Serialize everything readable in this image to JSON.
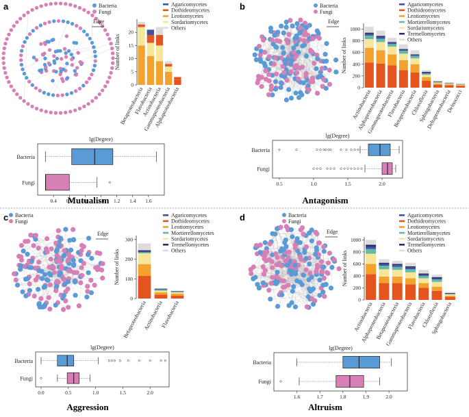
{
  "colors": {
    "bacteria": "#5b9bd5",
    "fungi": "#d680b6",
    "agaricomycetes": "#3b55a0",
    "dothideomycetes": "#e3541f",
    "leotiomycetes": "#f2a22d",
    "mortierellomycetes": "#66b9a6",
    "sordariomycetes": "#f6e69a",
    "tremellomycetes": "#2e2a6b",
    "others": "#dcdcdc",
    "edge": "#bdbdbd"
  },
  "common": {
    "bacteria_label": "Bacteria",
    "fungi_label": "Fungi",
    "edge_label": "Edge",
    "ylabel": "Number of links",
    "degree_label": "lg(Degree)"
  },
  "chart_data": [
    {
      "id": "a",
      "panel_label": "a",
      "title": "Mutualism",
      "type": "bar",
      "stacked": true,
      "ylim": [
        0,
        25
      ],
      "yticks": [
        0,
        5,
        10,
        15,
        20
      ],
      "categories": [
        "Betaproteobacteria",
        "Flavobacteria",
        "Actinobacteria",
        "Gammaproteobacteria",
        "Alphaproteobacteria"
      ],
      "legend": [
        "Agaricomycetes",
        "Dothideomycetes",
        "Leotiomycetes",
        "Sordariomycetes",
        "Others"
      ],
      "series": [
        {
          "name": "Dothideomycetes",
          "key": "dothideomycetes",
          "values": [
            0,
            0,
            0,
            0,
            2
          ]
        },
        {
          "name": "Leotiomycetes",
          "key": "leotiomycetes",
          "values": [
            15,
            11,
            9,
            5,
            0
          ]
        },
        {
          "name": "Sordariomycetes",
          "key": "sordariomycetes",
          "values": [
            7,
            5,
            6,
            2,
            0
          ]
        },
        {
          "name": "Dothideomycetes",
          "key": "dothideomycetes",
          "values": [
            1,
            3,
            4,
            1,
            1
          ]
        },
        {
          "name": "Agaricomycetes",
          "key": "agaricomycetes",
          "values": [
            0,
            2,
            0,
            0,
            0
          ]
        },
        {
          "name": "Others",
          "key": "others",
          "values": [
            1,
            0,
            3,
            1,
            0
          ]
        }
      ],
      "box": {
        "xlim": [
          0.2,
          1.8
        ],
        "xticks": [
          0.4,
          0.6,
          0.8,
          1.0,
          1.2,
          1.4,
          1.6
        ],
        "groups": [
          {
            "name": "Bacteria",
            "key": "bacteria",
            "min": 0.3,
            "q1": 0.63,
            "median": 0.92,
            "q3": 1.15,
            "max": 1.7,
            "outliers": []
          },
          {
            "name": "Fungi",
            "key": "fungi",
            "min": 0.3,
            "q1": 0.3,
            "median": 0.3,
            "q3": 0.6,
            "max": 0.95,
            "outliers": [
              1.11
            ]
          }
        ]
      },
      "network": {
        "bacteria": 75,
        "fungi": 110,
        "edges": 14,
        "layout": "ring"
      }
    },
    {
      "id": "b",
      "panel_label": "b",
      "title": "Antagonism",
      "type": "bar",
      "stacked": true,
      "ylim": [
        0,
        1100
      ],
      "yticks": [
        0,
        200,
        400,
        600,
        800,
        1000
      ],
      "categories": [
        "Actinobacteria",
        "Alphaproteobacteria",
        "Gammaproteobacteria",
        "Flavobacteria",
        "Betaproteobacteria",
        "Chloroflexia",
        "Sphingobacteria",
        "Deltaproteobacteria",
        "Deinococci"
      ],
      "legend": [
        "Agaricomycetes",
        "Dothideomycetes",
        "Leotiomycetes",
        "Mortierellomycetes",
        "Sordariomycetes",
        "Tremellomycetes",
        "Others"
      ],
      "series": [
        {
          "name": "Dothideomycetes",
          "key": "dothideomycetes",
          "values": [
            430,
            410,
            380,
            300,
            260,
            120,
            50,
            40,
            30
          ]
        },
        {
          "name": "Leotiomycetes",
          "key": "leotiomycetes",
          "values": [
            250,
            230,
            190,
            170,
            140,
            60,
            20,
            15,
            12
          ]
        },
        {
          "name": "Sordariomycetes",
          "key": "sordariomycetes",
          "values": [
            150,
            140,
            130,
            110,
            100,
            40,
            15,
            10,
            8
          ]
        },
        {
          "name": "Mortierellomycetes",
          "key": "mortierellomycetes",
          "values": [
            60,
            55,
            45,
            50,
            40,
            20,
            10,
            8,
            6
          ]
        },
        {
          "name": "Agaricomycetes",
          "key": "agaricomycetes",
          "values": [
            30,
            30,
            20,
            20,
            20,
            15,
            5,
            4,
            3
          ]
        },
        {
          "name": "Tremellomycetes",
          "key": "tremellomycetes",
          "values": [
            20,
            20,
            15,
            10,
            10,
            15,
            5,
            3,
            3
          ]
        },
        {
          "name": "Others",
          "key": "others",
          "values": [
            100,
            90,
            70,
            80,
            70,
            30,
            20,
            15,
            8
          ]
        }
      ],
      "box": {
        "xlim": [
          0.4,
          2.3
        ],
        "xticks": [
          0.5,
          1.0,
          1.5,
          2.0
        ],
        "groups": [
          {
            "name": "Bacteria",
            "key": "bacteria",
            "min": 1.68,
            "q1": 1.8,
            "median": 1.97,
            "q3": 2.12,
            "max": 2.25,
            "outliers": [
              0.5,
              0.75,
              1.05,
              1.1,
              1.15,
              1.18,
              1.22,
              1.25,
              1.4,
              1.48,
              1.55,
              1.6,
              1.65
            ]
          },
          {
            "name": "Fungi",
            "key": "fungi",
            "min": 1.75,
            "q1": 2.0,
            "median": 2.08,
            "q3": 2.15,
            "max": 2.2,
            "outliers": [
              1.0,
              1.05,
              1.1,
              1.2,
              1.25,
              1.3,
              1.4,
              1.45,
              1.5,
              1.55,
              1.6,
              1.65,
              1.7
            ]
          }
        ]
      },
      "network": {
        "bacteria": 110,
        "fungi": 90,
        "edges": 320,
        "layout": "dense"
      }
    },
    {
      "id": "c",
      "panel_label": "c",
      "title": "Aggression",
      "type": "bar",
      "stacked": true,
      "ylim": [
        0,
        320
      ],
      "yticks": [
        0,
        100,
        200,
        300
      ],
      "categories": [
        "Betaproteobacteria",
        "Actinobacteria",
        "Flavobacteria"
      ],
      "legend": [
        "Agaricomycetes",
        "Dothideomycetes",
        "Leotiomycetes",
        "Mortierellomycetes",
        "Sordariomycetes",
        "Tremellomycetes",
        "Others"
      ],
      "series": [
        {
          "name": "Dothideomycetes",
          "key": "dothideomycetes",
          "values": [
            115,
            20,
            15
          ]
        },
        {
          "name": "Leotiomycetes",
          "key": "leotiomycetes",
          "values": [
            60,
            12,
            10
          ]
        },
        {
          "name": "Sordariomycetes",
          "key": "sordariomycetes",
          "values": [
            55,
            8,
            6
          ]
        },
        {
          "name": "Mortierellomycetes",
          "key": "mortierellomycetes",
          "values": [
            5,
            5,
            4
          ]
        },
        {
          "name": "Agaricomycetes",
          "key": "agaricomycetes",
          "values": [
            5,
            3,
            2
          ]
        },
        {
          "name": "Tremellomycetes",
          "key": "tremellomycetes",
          "values": [
            5,
            2,
            1
          ]
        },
        {
          "name": "Others",
          "key": "others",
          "values": [
            35,
            2,
            2
          ]
        }
      ],
      "box": {
        "xlim": [
          -0.1,
          2.35
        ],
        "xticks": [
          0.0,
          0.5,
          1.0,
          1.5,
          2.0
        ],
        "groups": [
          {
            "name": "Bacteria",
            "key": "bacteria",
            "min": 0.0,
            "q1": 0.3,
            "median": 0.48,
            "q3": 0.6,
            "max": 1.05,
            "outliers": [
              1.25,
              1.3,
              1.35,
              1.45,
              1.6,
              1.8,
              2.0,
              2.2,
              2.28
            ]
          },
          {
            "name": "Fungi",
            "key": "fungi",
            "min": 0.3,
            "q1": 0.48,
            "median": 0.6,
            "q3": 0.7,
            "max": 0.9,
            "outliers": [
              0.0
            ]
          }
        ]
      },
      "network": {
        "bacteria": 95,
        "fungi": 100,
        "edges": 180,
        "layout": "medium"
      }
    },
    {
      "id": "d",
      "panel_label": "d",
      "title": "Altruism",
      "type": "bar",
      "stacked": true,
      "ylim": [
        0,
        1050
      ],
      "yticks": [
        0,
        200,
        400,
        600,
        800,
        1000
      ],
      "categories": [
        "Actinobacteria",
        "Alphaproteobacteria",
        "Betaproteobacteria",
        "Gammaproteobacteria",
        "Flavobacteria",
        "Chloroflexia",
        "Sphingobacteria"
      ],
      "legend": [
        "Agaricomycetes",
        "Dothideomycetes",
        "Leotiomycetes",
        "Mortierellomycetes",
        "Sordariomycetes",
        "Tremellomycetes",
        "Others"
      ],
      "series": [
        {
          "name": "Dothideomycetes",
          "key": "dothideomycetes",
          "values": [
            430,
            280,
            280,
            260,
            200,
            150,
            50
          ]
        },
        {
          "name": "Leotiomycetes",
          "key": "leotiomycetes",
          "values": [
            170,
            110,
            110,
            100,
            80,
            70,
            20
          ]
        },
        {
          "name": "Sordariomycetes",
          "key": "sordariomycetes",
          "values": [
            170,
            120,
            110,
            100,
            80,
            80,
            20
          ]
        },
        {
          "name": "Mortierellomycetes",
          "key": "mortierellomycetes",
          "values": [
            80,
            60,
            50,
            50,
            40,
            40,
            10
          ]
        },
        {
          "name": "Agaricomycetes",
          "key": "agaricomycetes",
          "values": [
            40,
            30,
            30,
            30,
            20,
            20,
            8
          ]
        },
        {
          "name": "Tremellomycetes",
          "key": "tremellomycetes",
          "values": [
            30,
            20,
            20,
            20,
            20,
            20,
            7
          ]
        },
        {
          "name": "Others",
          "key": "others",
          "values": [
            80,
            60,
            50,
            60,
            60,
            40,
            15
          ]
        }
      ],
      "box": {
        "xlim": [
          1.5,
          2.08
        ],
        "xticks": [
          1.6,
          1.7,
          1.8,
          1.9,
          2.0
        ],
        "groups": [
          {
            "name": "Bacteria",
            "key": "bacteria",
            "min": 1.6,
            "q1": 1.8,
            "median": 1.87,
            "q3": 1.96,
            "max": 2.01,
            "outliers": []
          },
          {
            "name": "Fungi",
            "key": "fungi",
            "min": 1.61,
            "q1": 1.77,
            "median": 1.83,
            "q3": 1.89,
            "max": 1.96,
            "outliers": [
              1.53
            ]
          }
        ]
      },
      "network": {
        "bacteria": 100,
        "fungi": 110,
        "edges": 420,
        "layout": "dense"
      }
    }
  ]
}
